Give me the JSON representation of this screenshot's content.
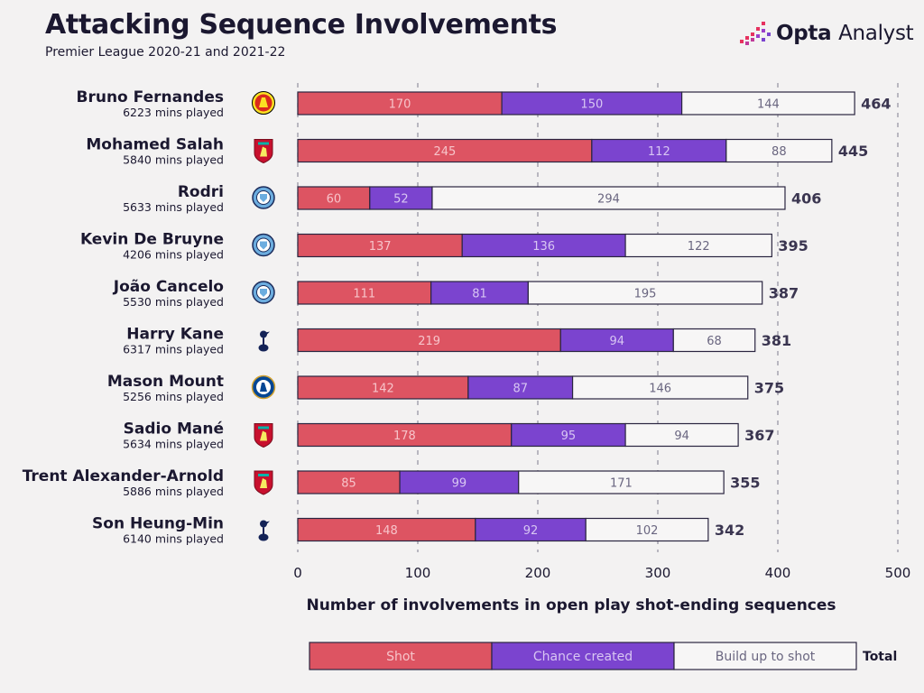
{
  "header": {
    "title": "Attacking Sequence Involvements",
    "subtitle": "Premier League 2020-21 and 2021-22",
    "brand": "Opta",
    "brand_light": "Analyst"
  },
  "colors": {
    "shot": "#dd5462",
    "chance_created": "#7b44cf",
    "build_up": "#f7f6f6",
    "bar_border": "#2a2540",
    "grid": "#9a97a6",
    "background": "#f3f2f2",
    "total_text": "#3a3550"
  },
  "chart_data": {
    "type": "bar",
    "orientation": "horizontal",
    "stacked": true,
    "categories": [
      "Bruno Fernandes",
      "Mohamed Salah",
      "Rodri",
      "Kevin De Bruyne",
      "João Cancelo",
      "Harry Kane",
      "Mason Mount",
      "Sadio Mané",
      "Trent Alexander-Arnold",
      "Son Heung-Min"
    ],
    "minutes": [
      "6223 mins played",
      "5840 mins played",
      "5633 mins played",
      "4206 mins played",
      "5530 mins played",
      "6317 mins played",
      "5256 mins played",
      "5634 mins played",
      "5886 mins played",
      "6140 mins played"
    ],
    "clubs": [
      "manchester-united-crest-icon",
      "liverpool-crest-icon",
      "manchester-city-crest-icon",
      "manchester-city-crest-icon",
      "manchester-city-crest-icon",
      "tottenham-crest-icon",
      "chelsea-crest-icon",
      "liverpool-crest-icon",
      "liverpool-crest-icon",
      "tottenham-crest-icon"
    ],
    "series": [
      {
        "name": "Shot",
        "key": "shot",
        "values": [
          170,
          245,
          60,
          137,
          111,
          219,
          142,
          178,
          85,
          148
        ]
      },
      {
        "name": "Chance created",
        "key": "chance_created",
        "values": [
          150,
          112,
          52,
          136,
          81,
          94,
          87,
          95,
          99,
          92
        ]
      },
      {
        "name": "Build up to shot",
        "key": "build_up",
        "values": [
          144,
          88,
          294,
          122,
          195,
          68,
          146,
          94,
          171,
          102
        ]
      }
    ],
    "totals": [
      464,
      445,
      406,
      395,
      387,
      381,
      375,
      367,
      355,
      342
    ],
    "xlabel": "Number of involvements in open play shot-ending sequences",
    "xlim": [
      0,
      500
    ],
    "xticks": [
      0,
      100,
      200,
      300,
      400,
      500
    ],
    "grid": true,
    "legend": {
      "placement": "bottom",
      "items": [
        "Shot",
        "Chance created",
        "Build up to shot"
      ],
      "total_label": "Total"
    }
  }
}
